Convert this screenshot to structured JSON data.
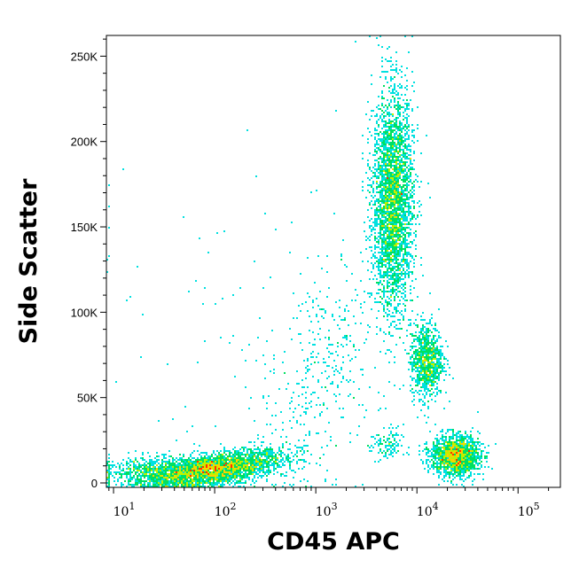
{
  "chart_data": {
    "type": "scatter",
    "subtype": "flow-cytometry density dot plot",
    "xlabel": "CD45 APC",
    "ylabel": "Side Scatter",
    "x_scale": "log",
    "xlim": [
      8.5,
      262144
    ],
    "ylim": [
      -2600,
      262144
    ],
    "x_ticks": [
      {
        "value": 10,
        "base": "10",
        "exp": "1"
      },
      {
        "value": 100,
        "base": "10",
        "exp": "2"
      },
      {
        "value": 1000,
        "base": "10",
        "exp": "3"
      },
      {
        "value": 10000,
        "base": "10",
        "exp": "4"
      },
      {
        "value": 100000,
        "base": "10",
        "exp": "5"
      }
    ],
    "y_ticks": [
      {
        "value": 0,
        "label": "0"
      },
      {
        "value": 50000,
        "label": "50K"
      },
      {
        "value": 100000,
        "label": "100K"
      },
      {
        "value": 150000,
        "label": "150K"
      },
      {
        "value": 200000,
        "label": "200K"
      },
      {
        "value": 250000,
        "label": "250K"
      }
    ],
    "grid": false,
    "legend": "none",
    "color_scale": [
      "#0000ff",
      "#00a0ff",
      "#00e0e0",
      "#00e060",
      "#c0f000",
      "#ffd000",
      "#ff3000"
    ],
    "populations": [
      {
        "x_center": 100,
        "x_log_spread": 0.35,
        "y_center": 8000,
        "y_spread": 4500,
        "y_slope_per_decade": 9000,
        "count": 3000
      },
      {
        "x_center": 25,
        "x_log_spread": 0.25,
        "y_center": 7000,
        "y_spread": 4000,
        "y_slope_per_decade": 0,
        "count": 600
      },
      {
        "x_center": 5800,
        "x_log_spread": 0.1,
        "y_center": 165000,
        "y_spread": 32000,
        "y_slope_per_decade": 0,
        "count": 3200
      },
      {
        "x_center": 12500,
        "x_log_spread": 0.08,
        "y_center": 72000,
        "y_spread": 11000,
        "y_slope_per_decade": 0,
        "count": 900
      },
      {
        "x_center": 24000,
        "x_log_spread": 0.12,
        "y_center": 16000,
        "y_spread": 6000,
        "y_slope_per_decade": 0,
        "count": 1500
      },
      {
        "x_center": 5000,
        "x_log_spread": 0.08,
        "y_center": 22000,
        "y_spread": 5000,
        "y_slope_per_decade": 0,
        "count": 120
      },
      {
        "x_center": 1200,
        "x_log_spread": 0.3,
        "y_center": 70000,
        "y_spread": 30000,
        "y_slope_per_decade": 60000,
        "count": 350
      },
      {
        "x_center": 300,
        "x_log_spread": 0.9,
        "y_center": 80000,
        "y_spread": 60000,
        "y_slope_per_decade": 0,
        "count": 120
      }
    ]
  }
}
